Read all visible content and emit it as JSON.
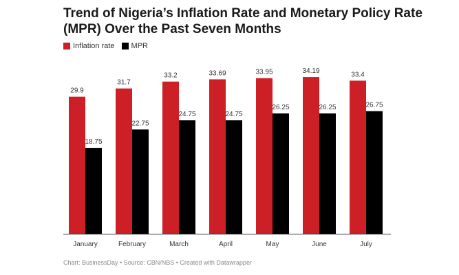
{
  "title": "Trend of Nigeria’s Inflation Rate and Monetary Policy Rate (MPR) Over the Past Seven Months",
  "footer": {
    "chart": "Chart: BusinessDay",
    "source": "Source: CBN/NBS",
    "credit": "Created with Datawrapper",
    "separator": " • "
  },
  "colors": {
    "inflation": "#cc2026",
    "mpr": "#000000",
    "axis": "#333333"
  },
  "chart_data": {
    "type": "bar",
    "title": "Trend of Nigeria’s Inflation Rate and Monetary Policy Rate (MPR) Over the Past Seven Months",
    "xlabel": "",
    "ylabel": "",
    "ylim": [
      0,
      37.5
    ],
    "grid": false,
    "legend_position": "top-left",
    "categories": [
      "January",
      "February",
      "March",
      "April",
      "May",
      "June",
      "July"
    ],
    "series": [
      {
        "name": "Inflation rate",
        "color": "#cc2026",
        "values": [
          29.9,
          31.7,
          33.2,
          33.69,
          33.95,
          34.19,
          33.4
        ],
        "labels": [
          "29.9",
          "31.7",
          "33.2",
          "33.69",
          "33.95",
          "34.19",
          "33.4"
        ]
      },
      {
        "name": "MPR",
        "color": "#000000",
        "values": [
          18.75,
          22.75,
          24.75,
          24.75,
          26.25,
          26.25,
          26.75
        ],
        "labels": [
          "18.75",
          "22.75",
          "24.75",
          "24.75",
          "26.25",
          "26.25",
          "26.75"
        ]
      }
    ]
  }
}
